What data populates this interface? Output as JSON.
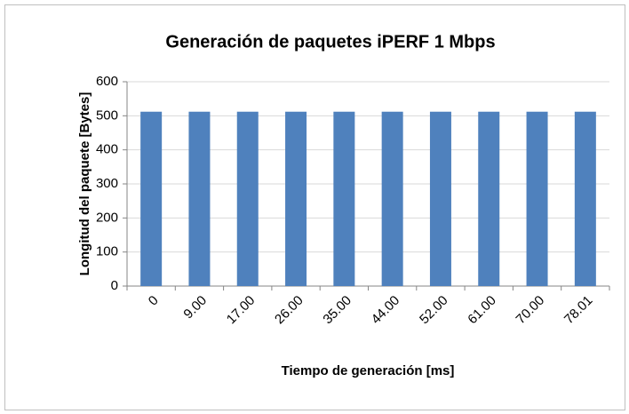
{
  "chart_data": {
    "type": "bar",
    "title": "Generación de paquetes iPERF 1 Mbps",
    "x_label": "Tiempo de generación [ms]",
    "y_label": "Longitud del paquete [Bytes]",
    "categories": [
      "0",
      "9.00",
      "17.00",
      "26.00",
      "35.00",
      "44.00",
      "52.00",
      "61.00",
      "70.00",
      "78.01"
    ],
    "values": [
      512,
      512,
      512,
      512,
      512,
      512,
      512,
      512,
      512,
      512
    ],
    "color": "#4f81bd",
    "ylim": [
      0,
      600
    ],
    "yticks": [
      0,
      100,
      200,
      300,
      400,
      500,
      600
    ],
    "grid": true
  }
}
